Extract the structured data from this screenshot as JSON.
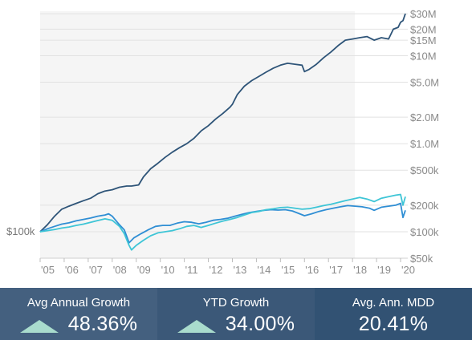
{
  "chart_data": {
    "type": "line",
    "title": "",
    "xlabel": "",
    "ylabel": "",
    "y_scale": "log",
    "ylim": [
      50000,
      32000000
    ],
    "xlim": [
      2005.0,
      2020.3
    ],
    "x_tick_labels": [
      "'05",
      "'06",
      "'07",
      "'08",
      "'09",
      "'10",
      "'11",
      "'12",
      "'13",
      "'14",
      "'15",
      "'16",
      "'17",
      "'18",
      "'19",
      "'20"
    ],
    "y_ticks": [
      {
        "value": 30000000,
        "label": "$30M"
      },
      {
        "value": 20000000,
        "label": "$20M"
      },
      {
        "value": 15000000,
        "label": "$15M"
      },
      {
        "value": 10000000,
        "label": "$10M"
      },
      {
        "value": 5000000,
        "label": "$5.0M"
      },
      {
        "value": 2000000,
        "label": "$2.0M"
      },
      {
        "value": 1000000,
        "label": "$1.0M"
      },
      {
        "value": 500000,
        "label": "$500k"
      },
      {
        "value": 200000,
        "label": "$200k"
      },
      {
        "value": 100000,
        "label": "$100k"
      },
      {
        "value": 50000,
        "label": "$50k"
      }
    ],
    "start_label": "$100k",
    "shaded_region_x": [
      2005.0,
      2018.1
    ],
    "grid": true,
    "series": [
      {
        "color": "#2e5478",
        "points": [
          [
            2005.0,
            100000
          ],
          [
            2005.3,
            120000
          ],
          [
            2005.6,
            150000
          ],
          [
            2005.9,
            180000
          ],
          [
            2006.2,
            195000
          ],
          [
            2006.5,
            210000
          ],
          [
            2006.8,
            225000
          ],
          [
            2007.1,
            240000
          ],
          [
            2007.4,
            270000
          ],
          [
            2007.7,
            290000
          ],
          [
            2008.0,
            300000
          ],
          [
            2008.3,
            320000
          ],
          [
            2008.6,
            330000
          ],
          [
            2008.8,
            330000
          ],
          [
            2009.1,
            340000
          ],
          [
            2009.3,
            420000
          ],
          [
            2009.6,
            520000
          ],
          [
            2009.9,
            600000
          ],
          [
            2010.2,
            700000
          ],
          [
            2010.5,
            800000
          ],
          [
            2010.8,
            900000
          ],
          [
            2011.1,
            1000000
          ],
          [
            2011.4,
            1150000
          ],
          [
            2011.7,
            1400000
          ],
          [
            2012.0,
            1600000
          ],
          [
            2012.3,
            1900000
          ],
          [
            2012.6,
            2200000
          ],
          [
            2012.9,
            2600000
          ],
          [
            2013.0,
            2800000
          ],
          [
            2013.2,
            3600000
          ],
          [
            2013.5,
            4500000
          ],
          [
            2013.8,
            5200000
          ],
          [
            2014.1,
            5800000
          ],
          [
            2014.4,
            6500000
          ],
          [
            2014.7,
            7200000
          ],
          [
            2015.0,
            7800000
          ],
          [
            2015.3,
            8200000
          ],
          [
            2015.6,
            8000000
          ],
          [
            2015.9,
            7800000
          ],
          [
            2016.0,
            6600000
          ],
          [
            2016.2,
            7000000
          ],
          [
            2016.5,
            8000000
          ],
          [
            2016.8,
            9500000
          ],
          [
            2017.1,
            11000000
          ],
          [
            2017.4,
            13000000
          ],
          [
            2017.7,
            15000000
          ],
          [
            2018.0,
            15500000
          ],
          [
            2018.3,
            16000000
          ],
          [
            2018.6,
            16500000
          ],
          [
            2018.9,
            15000000
          ],
          [
            2019.2,
            16000000
          ],
          [
            2019.5,
            15500000
          ],
          [
            2019.7,
            20000000
          ],
          [
            2019.9,
            21000000
          ],
          [
            2020.0,
            24000000
          ],
          [
            2020.1,
            25000000
          ],
          [
            2020.2,
            30000000
          ]
        ]
      },
      {
        "color": "#2f8ed4",
        "points": [
          [
            2005.0,
            100000
          ],
          [
            2005.3,
            108000
          ],
          [
            2005.6,
            115000
          ],
          [
            2005.9,
            122000
          ],
          [
            2006.2,
            126000
          ],
          [
            2006.5,
            133000
          ],
          [
            2006.8,
            138000
          ],
          [
            2007.1,
            143000
          ],
          [
            2007.4,
            150000
          ],
          [
            2007.7,
            155000
          ],
          [
            2007.85,
            160000
          ],
          [
            2008.0,
            150000
          ],
          [
            2008.3,
            120000
          ],
          [
            2008.5,
            105000
          ],
          [
            2008.7,
            75000
          ],
          [
            2008.9,
            85000
          ],
          [
            2009.2,
            95000
          ],
          [
            2009.5,
            105000
          ],
          [
            2009.8,
            115000
          ],
          [
            2010.1,
            118000
          ],
          [
            2010.4,
            118000
          ],
          [
            2010.7,
            125000
          ],
          [
            2011.0,
            130000
          ],
          [
            2011.3,
            128000
          ],
          [
            2011.6,
            123000
          ],
          [
            2011.9,
            128000
          ],
          [
            2012.2,
            135000
          ],
          [
            2012.5,
            138000
          ],
          [
            2012.8,
            142000
          ],
          [
            2013.1,
            150000
          ],
          [
            2013.4,
            158000
          ],
          [
            2013.7,
            165000
          ],
          [
            2014.0,
            170000
          ],
          [
            2014.3,
            175000
          ],
          [
            2014.6,
            178000
          ],
          [
            2014.9,
            176000
          ],
          [
            2015.2,
            178000
          ],
          [
            2015.5,
            172000
          ],
          [
            2015.8,
            160000
          ],
          [
            2016.0,
            152000
          ],
          [
            2016.3,
            160000
          ],
          [
            2016.6,
            170000
          ],
          [
            2016.9,
            178000
          ],
          [
            2017.2,
            185000
          ],
          [
            2017.5,
            192000
          ],
          [
            2017.8,
            198000
          ],
          [
            2018.1,
            195000
          ],
          [
            2018.4,
            192000
          ],
          [
            2018.7,
            185000
          ],
          [
            2018.9,
            175000
          ],
          [
            2019.2,
            190000
          ],
          [
            2019.5,
            195000
          ],
          [
            2019.8,
            200000
          ],
          [
            2020.0,
            210000
          ],
          [
            2020.1,
            145000
          ],
          [
            2020.2,
            175000
          ]
        ]
      },
      {
        "color": "#3ec5d6",
        "points": [
          [
            2005.0,
            100000
          ],
          [
            2005.3,
            103000
          ],
          [
            2005.6,
            106000
          ],
          [
            2005.9,
            110000
          ],
          [
            2006.2,
            113000
          ],
          [
            2006.5,
            118000
          ],
          [
            2006.8,
            122000
          ],
          [
            2007.1,
            128000
          ],
          [
            2007.4,
            134000
          ],
          [
            2007.7,
            140000
          ],
          [
            2008.0,
            135000
          ],
          [
            2008.3,
            115000
          ],
          [
            2008.5,
            95000
          ],
          [
            2008.7,
            70000
          ],
          [
            2008.8,
            62000
          ],
          [
            2009.0,
            70000
          ],
          [
            2009.3,
            80000
          ],
          [
            2009.6,
            90000
          ],
          [
            2009.9,
            97000
          ],
          [
            2010.2,
            100000
          ],
          [
            2010.5,
            103000
          ],
          [
            2010.8,
            108000
          ],
          [
            2011.1,
            115000
          ],
          [
            2011.4,
            118000
          ],
          [
            2011.7,
            112000
          ],
          [
            2012.0,
            118000
          ],
          [
            2012.3,
            125000
          ],
          [
            2012.6,
            132000
          ],
          [
            2012.9,
            138000
          ],
          [
            2013.2,
            145000
          ],
          [
            2013.5,
            155000
          ],
          [
            2013.8,
            165000
          ],
          [
            2014.1,
            170000
          ],
          [
            2014.4,
            178000
          ],
          [
            2014.7,
            182000
          ],
          [
            2015.0,
            188000
          ],
          [
            2015.3,
            190000
          ],
          [
            2015.6,
            185000
          ],
          [
            2015.9,
            180000
          ],
          [
            2016.2,
            183000
          ],
          [
            2016.5,
            190000
          ],
          [
            2016.8,
            198000
          ],
          [
            2017.1,
            205000
          ],
          [
            2017.4,
            215000
          ],
          [
            2017.7,
            225000
          ],
          [
            2018.0,
            235000
          ],
          [
            2018.3,
            245000
          ],
          [
            2018.6,
            235000
          ],
          [
            2018.9,
            220000
          ],
          [
            2019.2,
            240000
          ],
          [
            2019.5,
            250000
          ],
          [
            2019.8,
            260000
          ],
          [
            2020.0,
            265000
          ],
          [
            2020.1,
            200000
          ],
          [
            2020.2,
            250000
          ]
        ]
      }
    ]
  },
  "stats": [
    {
      "title": "Avg Annual Growth",
      "value": "48.36%",
      "trend": "up",
      "bg": "#44607f"
    },
    {
      "title": "YTD Growth",
      "value": "34.00%",
      "trend": "up",
      "bg": "#3b5878"
    },
    {
      "title": "Avg. Ann. MDD",
      "value": "20.41%",
      "trend": "",
      "bg": "#325273"
    }
  ]
}
